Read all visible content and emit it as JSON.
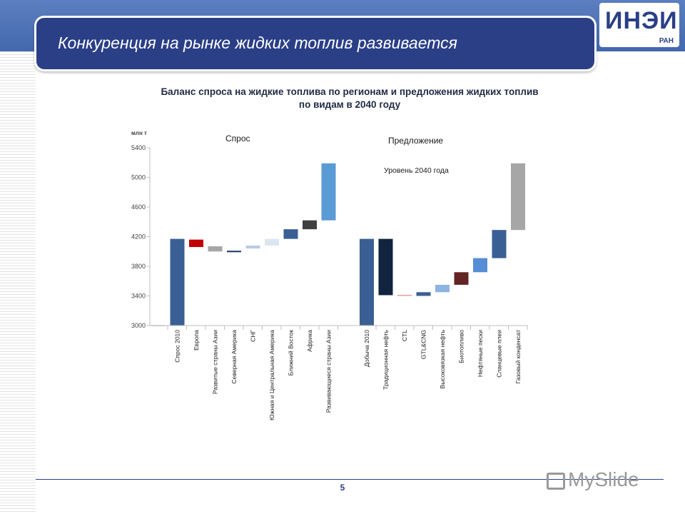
{
  "slide": {
    "title": "Конкуренция на рынке жидких топлив развивается",
    "subtitle_line1": "Баланс спроса на жидкие топлива по регионам и предложения жидких топлив",
    "subtitle_line2": "по видам в 2040 году",
    "page_number": "5"
  },
  "logo": {
    "main": "ИНЭИ",
    "sub": "РАН"
  },
  "watermark": {
    "text": "MySlide"
  },
  "colors": {
    "title_bar": "#2b3f86",
    "top_band": "#4468ad"
  },
  "chart_data": {
    "type": "bar",
    "subtype": "waterfall",
    "unit_label": "млн т",
    "ylim": [
      3000,
      5400
    ],
    "yticks": [
      3000,
      3400,
      3800,
      4200,
      4600,
      5000,
      5400
    ],
    "grid": false,
    "annotations": [
      "Уровень 2040 года"
    ],
    "groups": [
      {
        "title": "Спрос",
        "bars": [
          {
            "label": "",
            "base": 3000,
            "top": 3005,
            "color": "#3a5f95"
          },
          {
            "label": "Спрос 2010",
            "base": 3000,
            "top": 4170,
            "color": "#3a5f95"
          },
          {
            "label": "Европа",
            "base": 4060,
            "top": 4160,
            "color": "#c00000"
          },
          {
            "label": "Развитые страны Азии",
            "base": 4000,
            "top": 4070,
            "color": "#a6a6a6"
          },
          {
            "label": "Северная Америка",
            "base": 3990,
            "top": 4010,
            "color": "#1f3864"
          },
          {
            "label": "СНГ",
            "base": 4040,
            "top": 4080,
            "color": "#b8cce4"
          },
          {
            "label": "Южная и Центральная Америка",
            "base": 4080,
            "top": 4170,
            "color": "#dce6f1"
          },
          {
            "label": "Ближний Восток",
            "base": 4170,
            "top": 4300,
            "color": "#3a5f95"
          },
          {
            "label": "Африка",
            "base": 4300,
            "top": 4420,
            "color": "#404040"
          },
          {
            "label": "Развивающиеся страны Азии",
            "base": 4420,
            "top": 5190,
            "color": "#5b9bd5"
          }
        ]
      },
      {
        "title": "Предложение",
        "bars": [
          {
            "label": "Добыча 2010",
            "base": 3000,
            "top": 4170,
            "color": "#3a5f95"
          },
          {
            "label": "Традиционная нефть",
            "base": 3410,
            "top": 4170,
            "color": "#10243f"
          },
          {
            "label": "CTL",
            "base": 3400,
            "top": 3415,
            "color": "#e6a0a0"
          },
          {
            "label": "GTL&CNG",
            "base": 3400,
            "top": 3450,
            "color": "#3a5f95"
          },
          {
            "label": "Высоковязкая нефть",
            "base": 3450,
            "top": 3550,
            "color": "#8db4e2"
          },
          {
            "label": "Биотопливо",
            "base": 3550,
            "top": 3720,
            "color": "#632523"
          },
          {
            "label": "Нефтяные пески",
            "base": 3720,
            "top": 3910,
            "color": "#558ed5"
          },
          {
            "label": "Сланцевые плеи",
            "base": 3910,
            "top": 4290,
            "color": "#3a5f95"
          },
          {
            "label": "Газовый конденсат",
            "base": 4290,
            "top": 5190,
            "color": "#a6a6a6"
          }
        ]
      }
    ]
  }
}
